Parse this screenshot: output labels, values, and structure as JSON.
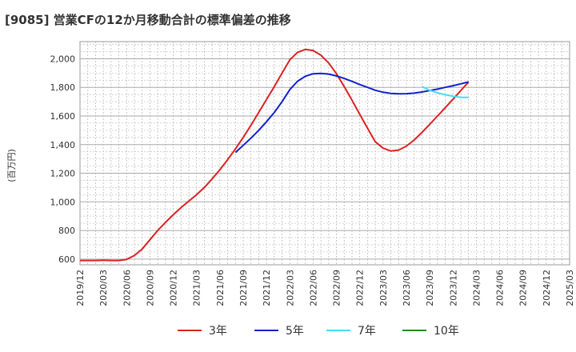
{
  "chart_data": {
    "type": "line",
    "title": "[9085]  営業CFの12か月移動合計の標準偏差の推移",
    "ylabel": "(百万円)",
    "xlabel": "",
    "ylim": [
      560,
      2120
    ],
    "y_ticks": [
      "600",
      "800",
      "1,000",
      "1,200",
      "1,400",
      "1,600",
      "1,800",
      "2,000"
    ],
    "y_tick_values": [
      600,
      800,
      1000,
      1200,
      1400,
      1600,
      1800,
      2000
    ],
    "x_ticks": [
      "2019/12",
      "2020/03",
      "2020/06",
      "2020/09",
      "2020/12",
      "2021/03",
      "2021/06",
      "2021/09",
      "2021/12",
      "2022/03",
      "2022/06",
      "2022/09",
      "2022/12",
      "2023/03",
      "2023/06",
      "2023/09",
      "2023/12",
      "2024/03",
      "2024/06",
      "2024/09",
      "2024/12",
      "2025/03"
    ],
    "grid": true,
    "legend_position": "bottom",
    "series": [
      {
        "name": "3年",
        "color": "#dd2222",
        "points": [
          [
            "2019/12",
            590
          ],
          [
            "2020/01",
            590
          ],
          [
            "2020/02",
            590
          ],
          [
            "2020/03",
            592
          ],
          [
            "2020/04",
            590
          ],
          [
            "2020/05",
            590
          ],
          [
            "2020/06",
            598
          ],
          [
            "2020/07",
            625
          ],
          [
            "2020/08",
            670
          ],
          [
            "2020/09",
            735
          ],
          [
            "2020/10",
            800
          ],
          [
            "2020/11",
            857
          ],
          [
            "2020/12",
            910
          ],
          [
            "2021/01",
            960
          ],
          [
            "2021/02",
            1005
          ],
          [
            "2021/03",
            1050
          ],
          [
            "2021/04",
            1100
          ],
          [
            "2021/05",
            1160
          ],
          [
            "2021/06",
            1225
          ],
          [
            "2021/07",
            1295
          ],
          [
            "2021/08",
            1370
          ],
          [
            "2021/09",
            1450
          ],
          [
            "2021/10",
            1535
          ],
          [
            "2021/11",
            1625
          ],
          [
            "2021/12",
            1715
          ],
          [
            "2022/01",
            1805
          ],
          [
            "2022/02",
            1900
          ],
          [
            "2022/03",
            1993
          ],
          [
            "2022/04",
            2045
          ],
          [
            "2022/05",
            2065
          ],
          [
            "2022/06",
            2058
          ],
          [
            "2022/07",
            2025
          ],
          [
            "2022/08",
            1970
          ],
          [
            "2022/09",
            1895
          ],
          [
            "2022/10",
            1805
          ],
          [
            "2022/11",
            1710
          ],
          [
            "2022/12",
            1612
          ],
          [
            "2023/01",
            1515
          ],
          [
            "2023/02",
            1420
          ],
          [
            "2023/03",
            1375
          ],
          [
            "2023/04",
            1355
          ],
          [
            "2023/05",
            1362
          ],
          [
            "2023/06",
            1390
          ],
          [
            "2023/07",
            1432
          ],
          [
            "2023/08",
            1485
          ],
          [
            "2023/09",
            1542
          ],
          [
            "2023/10",
            1600
          ],
          [
            "2023/11",
            1658
          ],
          [
            "2023/12",
            1718
          ],
          [
            "2024/01",
            1778
          ],
          [
            "2024/02",
            1838
          ]
        ]
      },
      {
        "name": "5年",
        "color": "#1122cc",
        "points": [
          [
            "2021/08",
            1345
          ],
          [
            "2021/09",
            1395
          ],
          [
            "2021/10",
            1445
          ],
          [
            "2021/11",
            1500
          ],
          [
            "2021/12",
            1560
          ],
          [
            "2022/01",
            1625
          ],
          [
            "2022/02",
            1700
          ],
          [
            "2022/03",
            1785
          ],
          [
            "2022/04",
            1843
          ],
          [
            "2022/05",
            1878
          ],
          [
            "2022/06",
            1895
          ],
          [
            "2022/07",
            1898
          ],
          [
            "2022/08",
            1893
          ],
          [
            "2022/09",
            1880
          ],
          [
            "2022/10",
            1862
          ],
          [
            "2022/11",
            1842
          ],
          [
            "2022/12",
            1820
          ],
          [
            "2023/01",
            1800
          ],
          [
            "2023/02",
            1780
          ],
          [
            "2023/03",
            1766
          ],
          [
            "2023/04",
            1758
          ],
          [
            "2023/05",
            1755
          ],
          [
            "2023/06",
            1756
          ],
          [
            "2023/07",
            1760
          ],
          [
            "2023/08",
            1768
          ],
          [
            "2023/09",
            1778
          ],
          [
            "2023/10",
            1788
          ],
          [
            "2023/11",
            1800
          ],
          [
            "2023/12",
            1812
          ],
          [
            "2024/01",
            1825
          ],
          [
            "2024/02",
            1838
          ]
        ]
      },
      {
        "name": "7年",
        "color": "#44e0ee",
        "points": [
          [
            "2023/08",
            1805
          ],
          [
            "2023/09",
            1780
          ],
          [
            "2023/10",
            1762
          ],
          [
            "2023/11",
            1748
          ],
          [
            "2023/12",
            1738
          ],
          [
            "2024/01",
            1730
          ],
          [
            "2024/02",
            1730
          ]
        ]
      },
      {
        "name": "10年",
        "color": "#228822",
        "points": []
      }
    ]
  }
}
